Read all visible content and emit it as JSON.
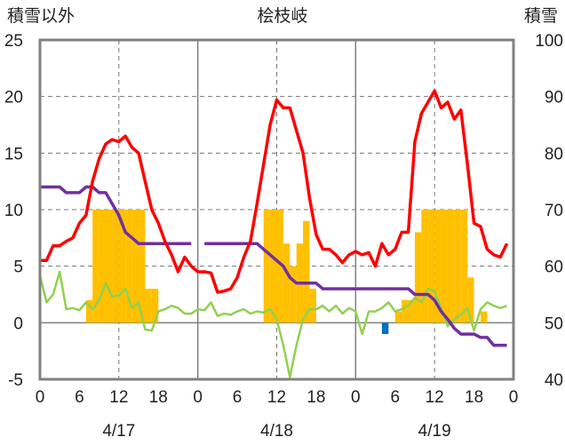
{
  "chart_data": {
    "type": "line",
    "title": "桧枝岐",
    "ylabel_left": "積雪以外",
    "ylabel_right": "積雪",
    "ylim_left": [
      -5,
      25
    ],
    "ylim_right": [
      40,
      100
    ],
    "yticks_left": [
      "-5",
      "0",
      "5",
      "10",
      "15",
      "20",
      "25"
    ],
    "yticks_right": [
      "40",
      "50",
      "60",
      "70",
      "80",
      "90",
      "100"
    ],
    "x_hour_ticks": [
      "0",
      "6",
      "12",
      "18",
      "0",
      "6",
      "12",
      "18",
      "0",
      "6",
      "12",
      "18",
      "0"
    ],
    "x_day_labels": [
      "4/17",
      "4/18",
      "4/19"
    ],
    "x_range_hours": [
      0,
      72
    ],
    "grid": "dashed",
    "colors": {
      "temperature_max_line": "#ff0000",
      "precip_bars": "#ffc000",
      "precip_bar_neg": "#0070c0",
      "wind_line": "#92d050",
      "snow_depth_line": "#7030a0",
      "zero_line": "#808080",
      "frame": "#808080"
    },
    "series": [
      {
        "key": "red",
        "x": [
          0,
          1,
          2,
          3,
          4,
          5,
          6,
          7,
          8,
          9,
          10,
          11,
          12,
          13,
          14,
          15,
          16,
          17,
          18,
          19,
          20,
          21,
          22,
          23,
          24,
          25,
          26,
          27,
          28,
          29,
          30,
          31,
          32,
          33,
          34,
          35,
          36,
          37,
          38,
          39,
          40,
          41,
          42,
          43,
          44,
          45,
          46,
          47,
          48,
          49,
          50,
          51,
          52,
          53,
          54,
          55,
          56,
          57,
          58,
          59,
          60,
          61,
          62,
          63,
          64,
          65,
          66,
          67,
          68,
          69,
          70,
          71
        ],
        "values": [
          5.5,
          5.5,
          6.8,
          6.8,
          7.2,
          7.5,
          8.8,
          9.5,
          12.5,
          14.5,
          15.8,
          16.2,
          16.0,
          16.5,
          15.5,
          15.0,
          12.5,
          10.0,
          8.8,
          7.2,
          6.0,
          4.5,
          5.8,
          5.0,
          4.5,
          4.5,
          4.4,
          2.7,
          2.8,
          3.0,
          4.0,
          5.8,
          7.2,
          10.5,
          14.0,
          17.5,
          19.7,
          19.0,
          19.0,
          17.0,
          15.0,
          11.0,
          7.8,
          6.5,
          6.5,
          6.0,
          5.3,
          6.0,
          6.3,
          6.0,
          6.2,
          5.0,
          7.0,
          6.0,
          6.5,
          8.0,
          8.0,
          16.0,
          18.5,
          19.5,
          20.5,
          19.0,
          19.5,
          18.0,
          18.8,
          14.0,
          8.8,
          8.5,
          6.5,
          6.0,
          5.8,
          7.0
        ]
      },
      {
        "key": "green",
        "x": [
          0,
          1,
          2,
          3,
          4,
          5,
          6,
          7,
          8,
          9,
          10,
          11,
          12,
          13,
          14,
          15,
          16,
          17,
          18,
          19,
          20,
          21,
          22,
          23,
          24,
          25,
          26,
          27,
          28,
          29,
          30,
          31,
          32,
          33,
          34,
          35,
          36,
          37,
          38,
          39,
          40,
          41,
          42,
          43,
          44,
          45,
          46,
          47,
          48,
          49,
          50,
          51,
          52,
          53,
          54,
          55,
          56,
          57,
          58,
          59,
          60,
          61,
          62,
          63,
          64,
          65,
          66,
          67,
          68,
          69,
          70,
          71
        ],
        "values": [
          4.2,
          1.8,
          2.5,
          4.5,
          1.2,
          1.3,
          1.1,
          1.8,
          1.2,
          2.0,
          3.5,
          2.3,
          2.4,
          3.0,
          1.3,
          1.8,
          -0.6,
          -0.7,
          1.0,
          1.2,
          1.5,
          1.3,
          0.8,
          0.8,
          1.2,
          1.1,
          1.8,
          0.6,
          0.8,
          0.7,
          1.0,
          1.2,
          0.8,
          1.0,
          0.9,
          1.2,
          0.3,
          -2.0,
          -4.8,
          -2.0,
          0.3,
          1.2,
          1.2,
          1.5,
          1.0,
          1.5,
          0.8,
          1.3,
          1.0,
          -1.0,
          1.0,
          1.0,
          1.3,
          1.8,
          1.0,
          1.2,
          1.5,
          2.2,
          1.8,
          3.0,
          2.8,
          1.3,
          -0.3,
          0.3,
          0.7,
          1.3,
          -0.7,
          1.2,
          1.8,
          1.5,
          1.3,
          1.5
        ]
      },
      {
        "key": "purple",
        "x": [
          0,
          3,
          4,
          6,
          7,
          8,
          9,
          10,
          11,
          12,
          13,
          14,
          15,
          16,
          17,
          18,
          19,
          20,
          21,
          22,
          23,
          24,
          25,
          26,
          27,
          28,
          29,
          30,
          31,
          32,
          33,
          34,
          35,
          36,
          37,
          38,
          39,
          40,
          41,
          42,
          43,
          44,
          45,
          46,
          47,
          48,
          49,
          50,
          51,
          52,
          53,
          54,
          55,
          56,
          57,
          58,
          59,
          60,
          61,
          62,
          63,
          64,
          65,
          66,
          67,
          68,
          69,
          70,
          71
        ],
        "values": [
          12.0,
          12.0,
          11.5,
          11.5,
          12.0,
          12.0,
          11.5,
          11.5,
          10.5,
          9.5,
          8.0,
          7.5,
          7.0,
          7.0,
          7.0,
          7.0,
          7.0,
          7.0,
          7.0,
          7.0,
          7.0,
          null,
          7.0,
          7.0,
          7.0,
          7.0,
          7.0,
          7.0,
          7.0,
          7.0,
          7.0,
          6.5,
          6.0,
          5.5,
          5.0,
          4.0,
          3.5,
          3.5,
          3.5,
          3.5,
          3.0,
          3.0,
          3.0,
          3.0,
          3.0,
          3.0,
          3.0,
          3.0,
          3.0,
          3.0,
          3.0,
          3.0,
          3.0,
          3.0,
          2.5,
          2.5,
          2.5,
          2.0,
          1.0,
          0.3,
          -0.5,
          -1.0,
          -1.0,
          -1.0,
          -1.3,
          -1.3,
          -2.0,
          -2.0,
          -2.0
        ]
      },
      {
        "key": "bars",
        "bar_width": 1,
        "x": [
          7,
          8,
          9,
          10,
          11,
          12,
          13,
          14,
          15,
          16,
          17,
          34,
          35,
          36,
          37,
          38,
          39,
          40,
          41,
          42,
          43,
          52,
          53,
          54,
          55,
          56,
          57,
          58,
          59,
          60,
          61,
          62,
          63,
          64,
          65,
          66,
          67
        ],
        "values": [
          2,
          10,
          10,
          10,
          10,
          10,
          10,
          10,
          10,
          3,
          3,
          10,
          10,
          10,
          7,
          5,
          7,
          9,
          3,
          0,
          0,
          -1,
          0,
          1,
          2,
          2,
          8,
          10,
          10,
          10,
          10,
          10,
          10,
          10,
          4,
          0,
          1
        ]
      }
    ]
  }
}
